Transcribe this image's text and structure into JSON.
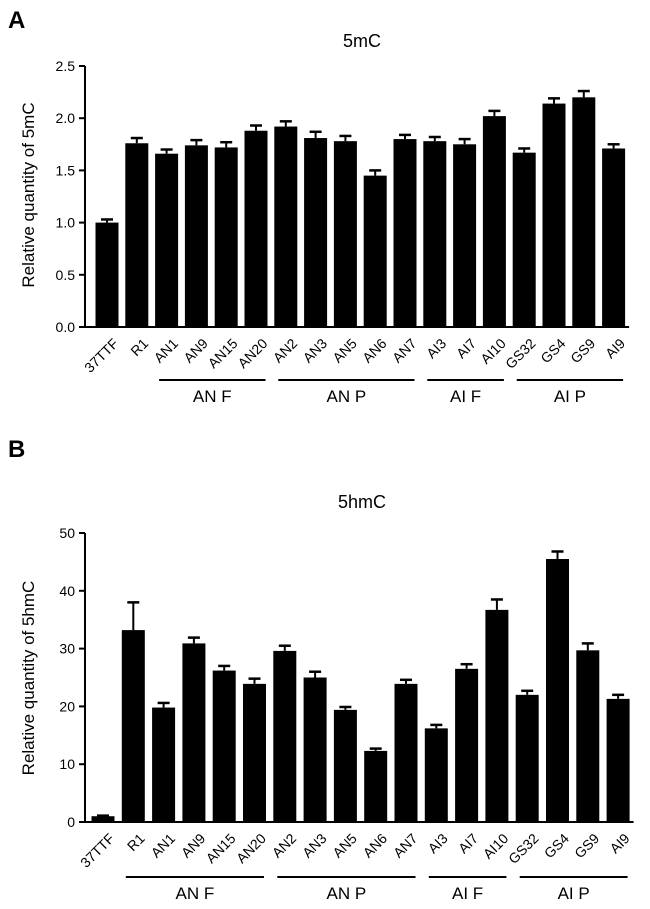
{
  "chart_data": [
    {
      "panel": "A",
      "type": "bar",
      "title": "5mC",
      "ylabel": "Relative quantity of  5mC",
      "xlabel": "",
      "ylim": [
        0,
        2.5
      ],
      "yticks": [
        "0.0",
        "0.5",
        "1.0",
        "1.5",
        "2.0",
        "2.5"
      ],
      "categories": [
        "37TTF",
        "R1",
        "AN1",
        "AN9",
        "AN15",
        "AN20",
        "AN2",
        "AN3",
        "AN5",
        "AN6",
        "AN7",
        "AI3",
        "AI7",
        "AI10",
        "GS32",
        "GS4",
        "GS9",
        "AI9"
      ],
      "values": [
        1.0,
        1.76,
        1.66,
        1.74,
        1.72,
        1.88,
        1.92,
        1.81,
        1.78,
        1.45,
        1.8,
        1.78,
        1.75,
        2.02,
        1.67,
        2.14,
        2.2,
        1.71
      ],
      "errors": [
        0.03,
        0.05,
        0.04,
        0.05,
        0.05,
        0.05,
        0.05,
        0.06,
        0.05,
        0.05,
        0.04,
        0.04,
        0.05,
        0.05,
        0.04,
        0.05,
        0.06,
        0.04
      ],
      "groups": [
        {
          "label": "AN F",
          "start": 2,
          "end": 5
        },
        {
          "label": "AN P",
          "start": 6,
          "end": 10
        },
        {
          "label": "AI F",
          "start": 11,
          "end": 13
        },
        {
          "label": "AI P",
          "start": 14,
          "end": 17
        }
      ]
    },
    {
      "panel": "B",
      "type": "bar",
      "title": "5hmC",
      "ylabel": "Relative quantity of  5hmC",
      "xlabel": "",
      "ylim": [
        0,
        50
      ],
      "yticks": [
        "0",
        "10",
        "20",
        "30",
        "40",
        "50"
      ],
      "categories": [
        "37TTF",
        "R1",
        "AN1",
        "AN9",
        "AN15",
        "AN20",
        "AN2",
        "AN3",
        "AN5",
        "AN6",
        "AN7",
        "AI3",
        "AI7",
        "AI10",
        "GS32",
        "GS4",
        "GS9",
        "AI9"
      ],
      "values": [
        1.0,
        33.2,
        19.8,
        30.9,
        26.2,
        23.9,
        29.6,
        25.0,
        19.4,
        12.3,
        23.9,
        16.2,
        26.5,
        36.7,
        22.0,
        45.5,
        29.7,
        21.3
      ],
      "errors": [
        0.1,
        4.8,
        0.8,
        1.0,
        0.8,
        0.9,
        0.9,
        1.0,
        0.5,
        0.4,
        0.7,
        0.6,
        0.8,
        1.8,
        0.7,
        1.3,
        1.2,
        0.7
      ],
      "groups": [
        {
          "label": "AN F",
          "start": 1,
          "end": 5
        },
        {
          "label": "AN P",
          "start": 6,
          "end": 10
        },
        {
          "label": "AI F",
          "start": 11,
          "end": 13
        },
        {
          "label": "AI P",
          "start": 14,
          "end": 17
        }
      ]
    }
  ]
}
